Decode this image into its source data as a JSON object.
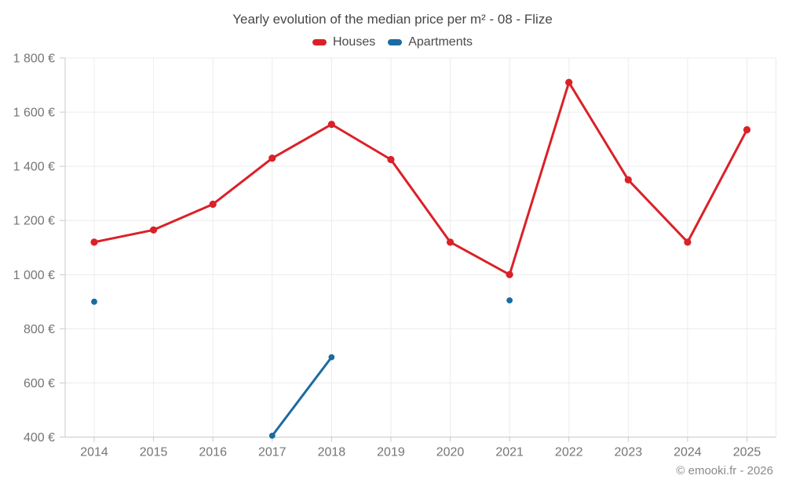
{
  "footer": {
    "text": "© emooki.fr - 2026"
  },
  "colors": {
    "houses_red": "#da2128",
    "apartments_blue": "#1b6ba1",
    "grid": "#ececec",
    "axis": "#c9c9c9",
    "tick_label": "#757575",
    "title_text": "#474747",
    "footer_text": "#8a8a8a"
  },
  "chart_data": {
    "type": "line",
    "title": "Yearly evolution of the median price per m² - 08 - Flize",
    "x": [
      2014,
      2015,
      2016,
      2017,
      2018,
      2019,
      2020,
      2021,
      2022,
      2023,
      2024,
      2025
    ],
    "series": [
      {
        "name": "Houses",
        "color": "#da2128",
        "values": [
          1120,
          1165,
          1260,
          1430,
          1555,
          1425,
          1120,
          1000,
          1710,
          1350,
          1120,
          1535
        ]
      },
      {
        "name": "Apartments",
        "color": "#1b6ba1",
        "values": [
          900,
          null,
          null,
          405,
          695,
          null,
          null,
          905,
          null,
          null,
          null,
          null
        ]
      }
    ],
    "ylabel": "",
    "xlabel": "",
    "ylim": [
      400,
      1800
    ],
    "ytick_step": 200,
    "ytick_suffix": " €",
    "grid": true,
    "legend_position": "top"
  }
}
